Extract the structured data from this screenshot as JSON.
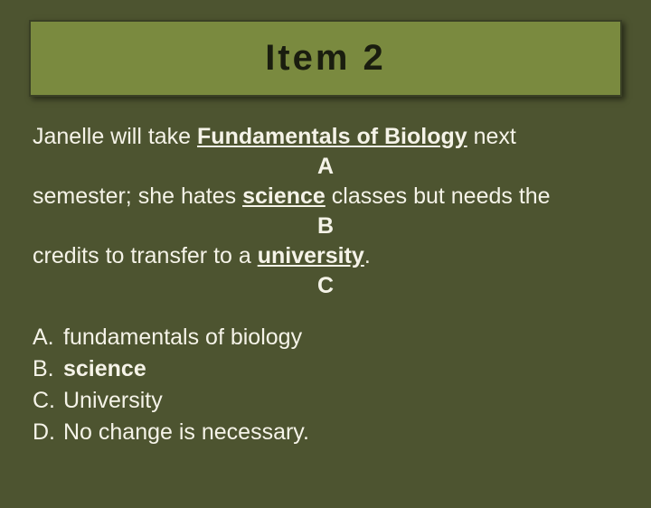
{
  "colors": {
    "background": "#4d5430",
    "title_box_bg": "#7a8a3f",
    "title_box_border": "#3a4025",
    "title_text": "#1a1d0f",
    "body_text": "#f5f3e8"
  },
  "title": "Item 2",
  "passage": {
    "line1_pre": "Janelle will take ",
    "line1_ul": "Fundamentals of Biology",
    "line1_post": " next",
    "marker1": "A",
    "line2_pre": "semester; she hates ",
    "line2_ul": "science",
    "line2_post": " classes but needs the",
    "marker2": "B",
    "line3_pre": "credits to transfer to a ",
    "line3_ul": "university",
    "line3_post": ".",
    "marker3": "C"
  },
  "options": [
    {
      "label": "A.",
      "text": "fundamentals of biology",
      "bold": false
    },
    {
      "label": "B.",
      "text": "science",
      "bold": true
    },
    {
      "label": "C.",
      "text": "University",
      "bold": false
    },
    {
      "label": "D.",
      "text": "No change is necessary.",
      "bold": false
    }
  ]
}
